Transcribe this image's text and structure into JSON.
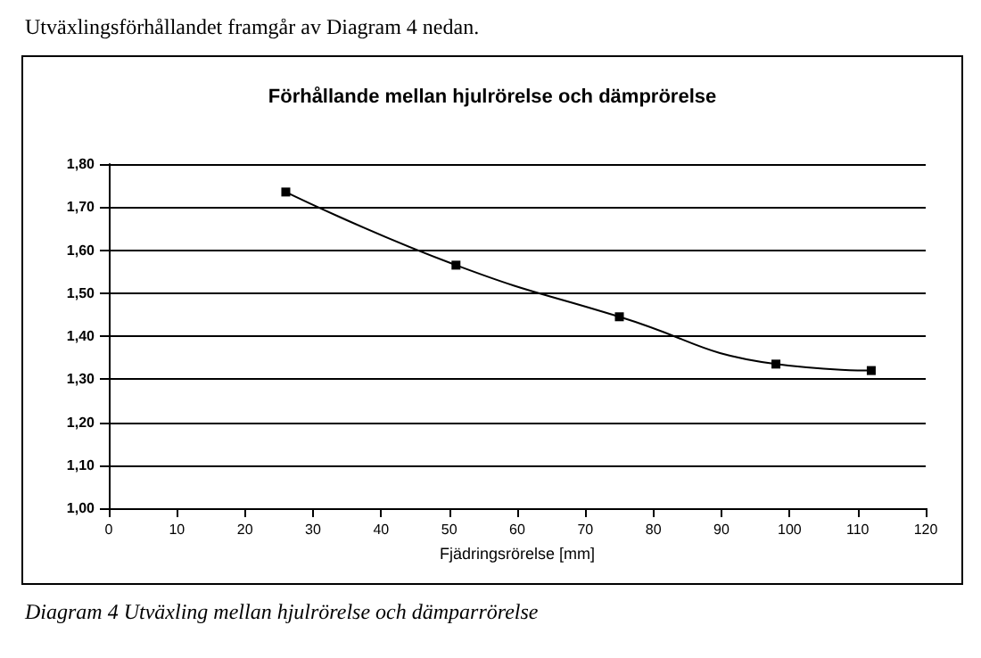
{
  "chart_data": {
    "type": "line",
    "title": "Förhållande mellan hjulrörelse och dämprörelse",
    "xlabel": "Fjädringsrörelse [mm]",
    "annotations": [
      "Utväxlingsförhållandet framgår av Diagram 4 nedan.",
      "Diagram 4 Utväxling mellan hjulrörelse och dämparrörelse"
    ],
    "x": [
      26,
      51,
      75,
      98,
      112
    ],
    "series": [
      {
        "color": "#000000",
        "values": [
          1.735,
          1.565,
          1.445,
          1.335,
          1.32
        ]
      }
    ],
    "xlim": [
      0,
      120
    ],
    "xticks": [
      0,
      10,
      20,
      30,
      40,
      50,
      60,
      70,
      80,
      90,
      100,
      110,
      120
    ],
    "ylim": [
      1.0,
      1.8
    ],
    "yticks": [
      {
        "value": 1.0,
        "label": "1,00"
      },
      {
        "value": 1.1,
        "label": "1,10"
      },
      {
        "value": 1.2,
        "label": "1,20"
      },
      {
        "value": 1.3,
        "label": "1,30"
      },
      {
        "value": 1.4,
        "label": "1,40"
      },
      {
        "value": 1.5,
        "label": "1,50"
      },
      {
        "value": 1.6,
        "label": "1,60"
      },
      {
        "value": 1.7,
        "label": "1,70"
      },
      {
        "value": 1.8,
        "label": "1,80"
      }
    ],
    "grid": "y",
    "marker": "square",
    "line_style": "solid"
  }
}
